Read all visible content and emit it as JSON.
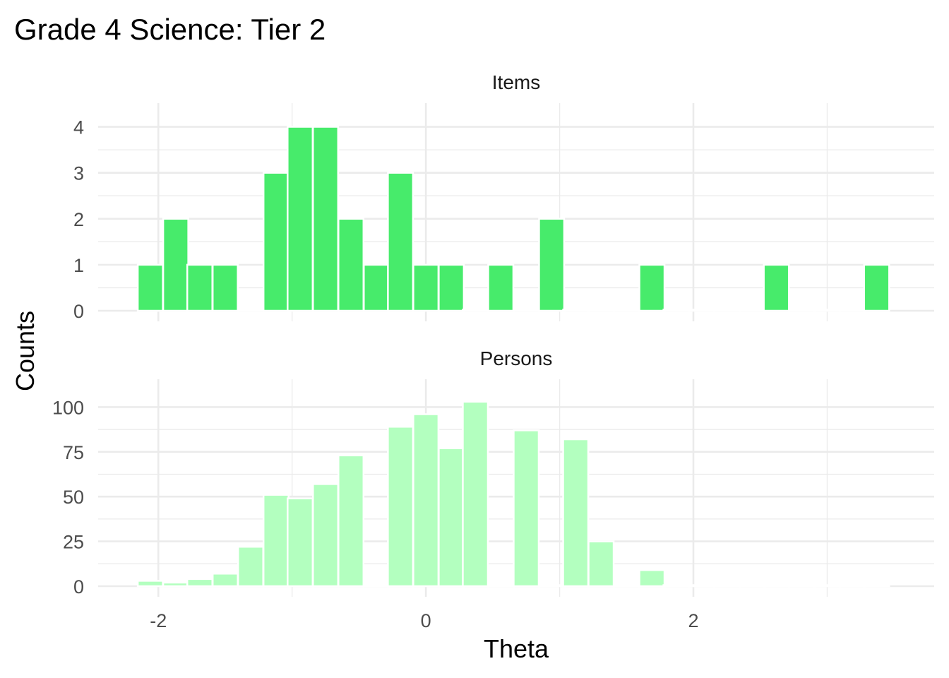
{
  "chart_data": {
    "type": "bar",
    "title": "Grade 4 Science: Tier 2",
    "xlabel": "Theta",
    "ylabel": "Counts",
    "bin_width": 0.1875,
    "xlim": [
      -2.45,
      3.8
    ],
    "x_ticks": [
      -2,
      0,
      2
    ],
    "x_tick_labels": [
      "-2",
      "0",
      "2"
    ],
    "grid": true,
    "legend": "none",
    "panels": [
      {
        "name": "Items",
        "color": "#47eb6b",
        "ylim": [
          0,
          4.3
        ],
        "y_ticks": [
          0,
          1,
          2,
          3,
          4
        ],
        "y_tick_labels": [
          "0",
          "1",
          "2",
          "3",
          "4"
        ],
        "bin_centers": [
          -2.06,
          -1.87,
          -1.69,
          -1.5,
          -1.31,
          -1.12,
          -0.94,
          -0.75,
          -0.56,
          -0.37,
          -0.19,
          0.0,
          0.19,
          0.37,
          0.56,
          0.75,
          0.94,
          1.12,
          1.31,
          1.5,
          1.69,
          1.87,
          2.06,
          2.25,
          2.44,
          2.62,
          2.81,
          3.0,
          3.19,
          3.37
        ],
        "values": [
          1,
          2,
          1,
          1,
          0,
          3,
          4,
          4,
          2,
          1,
          3,
          1,
          1,
          0,
          1,
          0,
          2,
          0,
          0,
          0,
          1,
          0,
          0,
          0,
          0,
          1,
          0,
          0,
          0,
          1
        ]
      },
      {
        "name": "Persons",
        "color": "#b3ffbf",
        "ylim": [
          0,
          110
        ],
        "y_ticks": [
          0,
          25,
          50,
          75,
          100
        ],
        "y_tick_labels": [
          "0",
          "25",
          "50",
          "75",
          "100"
        ],
        "bin_centers": [
          -2.06,
          -1.87,
          -1.69,
          -1.5,
          -1.31,
          -1.12,
          -0.94,
          -0.75,
          -0.56,
          -0.37,
          -0.19,
          0.0,
          0.19,
          0.37,
          0.56,
          0.75,
          0.94,
          1.12,
          1.31,
          1.5,
          1.69,
          1.87,
          2.06,
          2.25,
          2.44,
          2.62,
          2.81,
          3.0,
          3.19,
          3.37
        ],
        "values": [
          3,
          2,
          4,
          7,
          22,
          51,
          49,
          57,
          73,
          0,
          89,
          96,
          77,
          103,
          0,
          87,
          0,
          82,
          25,
          0,
          9,
          0,
          0,
          0,
          0,
          0,
          0,
          0,
          0,
          0
        ]
      }
    ]
  }
}
